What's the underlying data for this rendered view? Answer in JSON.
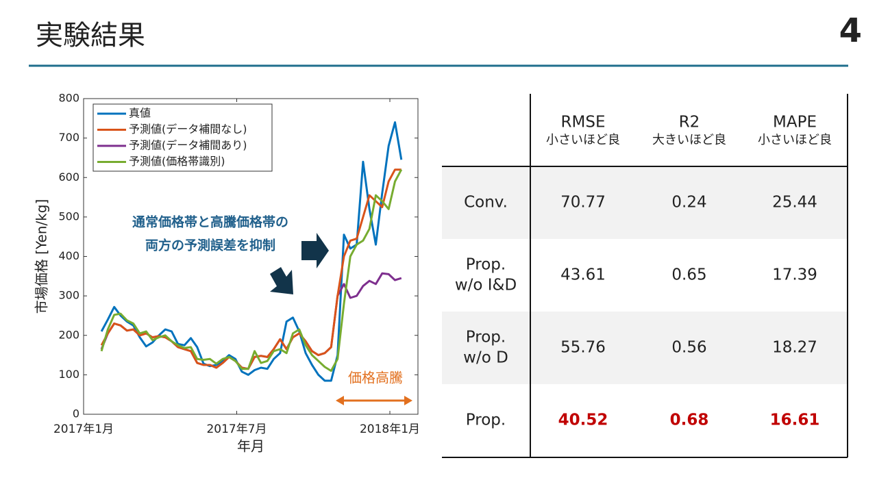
{
  "header": {
    "title": "実験結果",
    "page_number": "4"
  },
  "chart_data": {
    "type": "line",
    "x": [
      0.7,
      0.95,
      1.2,
      1.45,
      1.7,
      1.95,
      2.2,
      2.45,
      2.7,
      2.95,
      3.2,
      3.45,
      3.7,
      3.95,
      4.2,
      4.45,
      4.7,
      4.95,
      5.2,
      5.45,
      5.7,
      5.95,
      6.2,
      6.45,
      6.7,
      6.95,
      7.2,
      7.45,
      7.7,
      7.95,
      8.2,
      8.45,
      8.7,
      8.95,
      9.2,
      9.45,
      9.7,
      9.95,
      10.2,
      10.45,
      10.7,
      10.95,
      11.2,
      11.45,
      11.7,
      11.95,
      12.2,
      12.45
    ],
    "series": [
      {
        "name": "真値",
        "color": "#0072bd",
        "values": [
          210,
          240,
          272,
          250,
          235,
          225,
          195,
          172,
          182,
          200,
          215,
          210,
          178,
          175,
          193,
          170,
          128,
          122,
          125,
          135,
          150,
          140,
          108,
          100,
          112,
          118,
          115,
          140,
          155,
          235,
          245,
          210,
          155,
          125,
          100,
          85,
          85,
          150,
          455,
          420,
          430,
          640,
          520,
          430,
          560,
          680,
          740,
          645
        ]
      },
      {
        "name": "予測値(データ補間なし)",
        "color": "#d95319",
        "values": [
          175,
          205,
          230,
          225,
          212,
          215,
          200,
          205,
          195,
          198,
          195,
          185,
          170,
          165,
          160,
          130,
          125,
          125,
          118,
          130,
          145,
          135,
          118,
          115,
          145,
          148,
          145,
          165,
          190,
          165,
          195,
          205,
          185,
          160,
          150,
          155,
          170,
          300,
          400,
          440,
          445,
          500,
          555,
          540,
          525,
          590,
          620,
          620
        ]
      },
      {
        "name": "予測値(データ補間あり)",
        "color": "#7e2f8e",
        "values": [
          165,
          205,
          230,
          225,
          212,
          215,
          200,
          205,
          195,
          198,
          195,
          185,
          170,
          165,
          160,
          130,
          125,
          125,
          118,
          130,
          145,
          135,
          118,
          115,
          145,
          148,
          145,
          165,
          190,
          165,
          195,
          205,
          185,
          160,
          150,
          155,
          170,
          300,
          330,
          295,
          300,
          325,
          338,
          330,
          357,
          355,
          340,
          345
        ]
      },
      {
        "name": "予測値(価格帯識別)",
        "color": "#77ac30",
        "values": [
          160,
          215,
          252,
          255,
          238,
          230,
          205,
          210,
          188,
          195,
          200,
          185,
          175,
          168,
          170,
          140,
          138,
          140,
          128,
          140,
          145,
          135,
          115,
          115,
          160,
          130,
          135,
          160,
          165,
          155,
          205,
          215,
          175,
          150,
          135,
          120,
          110,
          140,
          280,
          400,
          430,
          440,
          470,
          555,
          540,
          520,
          590,
          620
        ]
      }
    ],
    "xlim": [
      0,
      13.1
    ],
    "ylim": [
      0,
      800
    ],
    "xticks": [
      {
        "value": 0,
        "label": "2017年1月"
      },
      {
        "value": 6,
        "label": "2017年7月"
      },
      {
        "value": 12,
        "label": "2018年1月"
      }
    ],
    "yticks": [
      0,
      100,
      200,
      300,
      400,
      500,
      600,
      700,
      800
    ],
    "xlabel": "年月",
    "ylabel": "市場価格 [Yen/kg]",
    "legend": "upper-left",
    "annotations": [
      {
        "text": "通常価格帯と高騰価格帯の"
      },
      {
        "text": "両方の予測誤差を抑制"
      },
      {
        "text": "価格高騰"
      }
    ]
  },
  "table": {
    "columns": [
      {
        "name": "RMSE",
        "note": "小さいほど良"
      },
      {
        "name": "R2",
        "note": "大きいほど良"
      },
      {
        "name": "MAPE",
        "note": "小さいほど良"
      }
    ],
    "rows": [
      {
        "label": [
          "Conv."
        ],
        "values": [
          "70.77",
          "0.24",
          "25.44"
        ]
      },
      {
        "label": [
          "Prop.",
          "w/o I&D"
        ],
        "values": [
          "43.61",
          "0.65",
          "17.39"
        ]
      },
      {
        "label": [
          "Prop.",
          "w/o D"
        ],
        "values": [
          "55.76",
          "0.56",
          "18.27"
        ]
      },
      {
        "label": [
          "Prop."
        ],
        "values": [
          "40.52",
          "0.68",
          "16.61"
        ]
      }
    ],
    "highlight_row": 3,
    "highlight_color": "#c00000"
  }
}
